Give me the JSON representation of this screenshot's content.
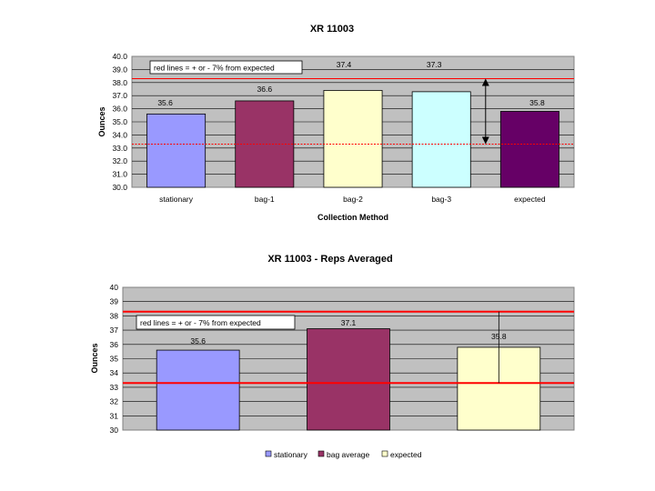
{
  "chart_data": [
    {
      "type": "bar",
      "title": "XR 11003",
      "xlabel": "Collection Method",
      "ylabel": "Ounces",
      "ylim": [
        30.0,
        40.0
      ],
      "ytick_step": 1.0,
      "ytick_decimals": 1,
      "categories": [
        "stationary",
        "bag-1",
        "bag-2",
        "bag-3",
        "expected"
      ],
      "values": [
        35.6,
        36.6,
        37.4,
        37.3,
        35.8
      ],
      "data_labels": [
        "35.6",
        "36.6",
        "37.4",
        "37.3",
        "35.8"
      ],
      "colors": [
        "#9999ff",
        "#993366",
        "#ffffcc",
        "#ccffff",
        "#660066"
      ],
      "annotation": "red lines = + or - 7% from expected",
      "reference_lines": {
        "upper": 38.3,
        "lower": 33.3,
        "color": "#ff0000"
      },
      "range_arrow": {
        "category_index": 3,
        "from": 33.3,
        "to": 38.3
      },
      "grid": true,
      "plot_background": "#c0c0c0",
      "legend": "none"
    },
    {
      "type": "bar",
      "title": "XR 11003 - Reps Averaged",
      "xlabel": "",
      "ylabel": "Ounces",
      "ylim": [
        30,
        40
      ],
      "ytick_step": 1,
      "ytick_decimals": 0,
      "categories": [
        "stationary",
        "bag average",
        "expected"
      ],
      "values": [
        35.6,
        37.1,
        35.8
      ],
      "data_labels": [
        "35.6",
        "37.1",
        "35.8"
      ],
      "colors": [
        "#9999ff",
        "#993366",
        "#ffffcc"
      ],
      "annotation": "red lines = + or - 7% from expected",
      "reference_lines": {
        "upper": 38.3,
        "lower": 33.3,
        "color": "#ff0000"
      },
      "range_line": {
        "category_index": 2,
        "from": 33.3,
        "to": 38.3
      },
      "grid": true,
      "plot_background": "#c0c0c0",
      "legend": "bottom",
      "legend_entries": [
        "stationary",
        "bag average",
        "expected"
      ]
    }
  ]
}
